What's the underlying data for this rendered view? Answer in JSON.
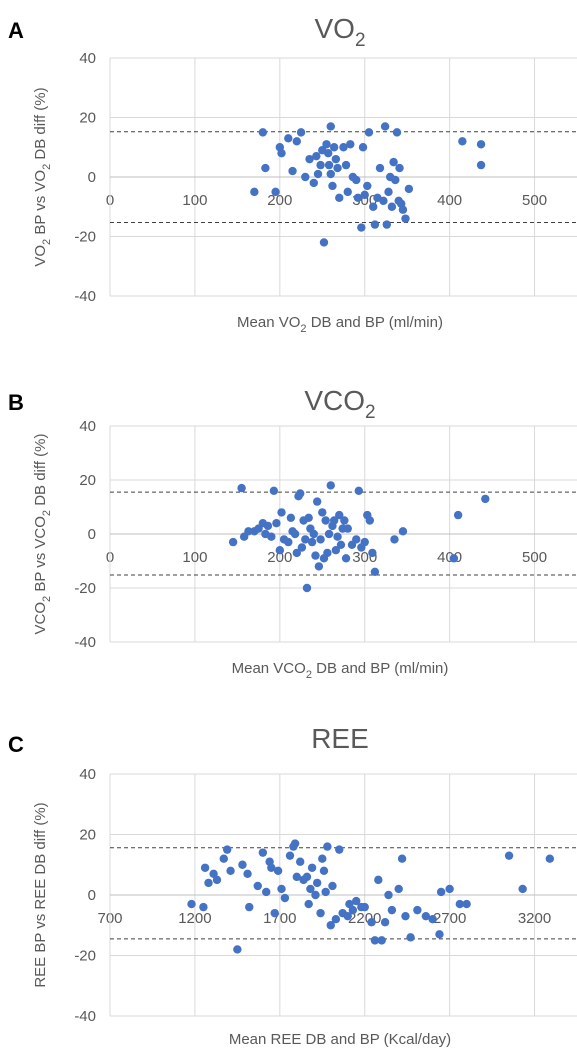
{
  "chart_data": [
    {
      "panel": "A",
      "type": "scatter",
      "title": "VO",
      "title_sub": "2",
      "xlabel_parts": [
        "Mean VO",
        "2",
        " DB and BP (ml/min)"
      ],
      "ylabel_parts": [
        "VO",
        "2",
        " BP vs VO",
        "2",
        " DB diff (%)"
      ],
      "xlim": [
        0,
        550
      ],
      "ylim": [
        -40,
        40
      ],
      "xticks": [
        0,
        100,
        200,
        300,
        400,
        500
      ],
      "yticks": [
        -40,
        -20,
        0,
        20,
        40
      ],
      "limits_of_agreement": [
        15.2,
        -15.3
      ],
      "series": [
        {
          "color": "#4472C4",
          "points": [
            [
              170,
              -5
            ],
            [
              180,
              15
            ],
            [
              183,
              3
            ],
            [
              195,
              -5
            ],
            [
              200,
              10
            ],
            [
              202,
              8
            ],
            [
              210,
              13
            ],
            [
              215,
              2
            ],
            [
              220,
              12
            ],
            [
              225,
              15
            ],
            [
              230,
              0
            ],
            [
              235,
              6
            ],
            [
              240,
              -2
            ],
            [
              243,
              7
            ],
            [
              245,
              1
            ],
            [
              248,
              4
            ],
            [
              250,
              9
            ],
            [
              252,
              -22
            ],
            [
              255,
              11
            ],
            [
              257,
              8
            ],
            [
              258,
              4
            ],
            [
              260,
              17
            ],
            [
              260,
              1
            ],
            [
              262,
              -3
            ],
            [
              264,
              10
            ],
            [
              266,
              6
            ],
            [
              268,
              3
            ],
            [
              270,
              -7
            ],
            [
              275,
              10
            ],
            [
              278,
              4
            ],
            [
              280,
              -5
            ],
            [
              283,
              11
            ],
            [
              286,
              0
            ],
            [
              290,
              -1
            ],
            [
              292,
              -7
            ],
            [
              296,
              -17
            ],
            [
              298,
              10
            ],
            [
              300,
              -6
            ],
            [
              303,
              -3
            ],
            [
              305,
              15
            ],
            [
              310,
              -10
            ],
            [
              312,
              -16
            ],
            [
              315,
              -7
            ],
            [
              318,
              3
            ],
            [
              322,
              -8
            ],
            [
              324,
              17
            ],
            [
              326,
              -16
            ],
            [
              328,
              -5
            ],
            [
              330,
              0
            ],
            [
              332,
              -10
            ],
            [
              334,
              5
            ],
            [
              336,
              -1
            ],
            [
              338,
              15
            ],
            [
              340,
              -8
            ],
            [
              341,
              3
            ],
            [
              343,
              -9
            ],
            [
              345,
              -11
            ],
            [
              348,
              -14
            ],
            [
              352,
              -4
            ],
            [
              415,
              12
            ],
            [
              437,
              11
            ],
            [
              437,
              4
            ]
          ]
        }
      ]
    },
    {
      "panel": "B",
      "type": "scatter",
      "title": "VCO",
      "title_sub": "2",
      "xlabel_parts": [
        "Mean VCO",
        "2",
        " DB and BP  (ml/min)"
      ],
      "ylabel_parts": [
        "VCO",
        "2",
        " BP vs VCO",
        "2",
        " DB diff (%)"
      ],
      "xlim": [
        0,
        550
      ],
      "ylim": [
        -40,
        40
      ],
      "xticks": [
        0,
        100,
        200,
        300,
        400,
        500
      ],
      "yticks": [
        -40,
        -20,
        0,
        20,
        40
      ],
      "limits_of_agreement": [
        15.5,
        -15.2
      ],
      "series": [
        {
          "color": "#4472C4",
          "points": [
            [
              145,
              -3
            ],
            [
              155,
              17
            ],
            [
              158,
              -1
            ],
            [
              163,
              1
            ],
            [
              170,
              1
            ],
            [
              175,
              2
            ],
            [
              180,
              4
            ],
            [
              183,
              0
            ],
            [
              186,
              3
            ],
            [
              190,
              -1
            ],
            [
              193,
              16
            ],
            [
              196,
              4
            ],
            [
              200,
              -6
            ],
            [
              202,
              8
            ],
            [
              205,
              -2
            ],
            [
              210,
              -3
            ],
            [
              213,
              6
            ],
            [
              215,
              1
            ],
            [
              218,
              0
            ],
            [
              220,
              -7
            ],
            [
              222,
              14
            ],
            [
              224,
              15
            ],
            [
              226,
              -5
            ],
            [
              228,
              5
            ],
            [
              230,
              -2
            ],
            [
              232,
              -20
            ],
            [
              234,
              6
            ],
            [
              236,
              2
            ],
            [
              238,
              -3
            ],
            [
              240,
              0
            ],
            [
              242,
              -8
            ],
            [
              244,
              12
            ],
            [
              246,
              -12
            ],
            [
              248,
              -2
            ],
            [
              250,
              8
            ],
            [
              252,
              -9
            ],
            [
              254,
              5
            ],
            [
              256,
              -7
            ],
            [
              258,
              0
            ],
            [
              260,
              18
            ],
            [
              262,
              3
            ],
            [
              264,
              5
            ],
            [
              266,
              -6
            ],
            [
              268,
              -1
            ],
            [
              270,
              7
            ],
            [
              272,
              -4
            ],
            [
              274,
              2
            ],
            [
              276,
              5
            ],
            [
              278,
              -9
            ],
            [
              280,
              2
            ],
            [
              285,
              -4
            ],
            [
              290,
              -2
            ],
            [
              293,
              16
            ],
            [
              296,
              -5
            ],
            [
              300,
              -3
            ],
            [
              303,
              7
            ],
            [
              306,
              5
            ],
            [
              309,
              -7
            ],
            [
              312,
              -14
            ],
            [
              335,
              -2
            ],
            [
              345,
              1
            ],
            [
              405,
              -9
            ],
            [
              410,
              7
            ],
            [
              442,
              13
            ]
          ]
        }
      ]
    },
    {
      "panel": "C",
      "type": "scatter",
      "title": "REE",
      "xlabel_parts": [
        "Mean REE DB and BP (Kcal/day)"
      ],
      "ylabel_parts": [
        "REE BP vs REE DB diff (%)"
      ],
      "xlim": [
        700,
        3450
      ],
      "ylim": [
        -40,
        40
      ],
      "xticks": [
        700,
        1200,
        1700,
        2200,
        2700,
        3200
      ],
      "yticks": [
        -40,
        -20,
        0,
        20,
        40
      ],
      "limits_of_agreement": [
        15.6,
        -14.5
      ],
      "series": [
        {
          "color": "#4472C4",
          "points": [
            [
              1180,
              -3
            ],
            [
              1250,
              -4
            ],
            [
              1260,
              9
            ],
            [
              1280,
              4
            ],
            [
              1310,
              7
            ],
            [
              1330,
              5
            ],
            [
              1370,
              12
            ],
            [
              1390,
              15
            ],
            [
              1410,
              8
            ],
            [
              1450,
              -18
            ],
            [
              1480,
              10
            ],
            [
              1510,
              7
            ],
            [
              1520,
              -4
            ],
            [
              1570,
              3
            ],
            [
              1600,
              14
            ],
            [
              1620,
              1
            ],
            [
              1640,
              11
            ],
            [
              1650,
              9
            ],
            [
              1670,
              -6
            ],
            [
              1690,
              8
            ],
            [
              1710,
              2
            ],
            [
              1730,
              -1
            ],
            [
              1760,
              13
            ],
            [
              1780,
              16
            ],
            [
              1790,
              17
            ],
            [
              1800,
              6
            ],
            [
              1820,
              11
            ],
            [
              1840,
              5
            ],
            [
              1860,
              6
            ],
            [
              1870,
              -3
            ],
            [
              1880,
              2
            ],
            [
              1890,
              9
            ],
            [
              1910,
              0
            ],
            [
              1920,
              4
            ],
            [
              1940,
              -6
            ],
            [
              1950,
              12
            ],
            [
              1960,
              8
            ],
            [
              1970,
              1
            ],
            [
              1980,
              16
            ],
            [
              2000,
              -10
            ],
            [
              2010,
              3
            ],
            [
              2030,
              -8
            ],
            [
              2050,
              15
            ],
            [
              2070,
              -6
            ],
            [
              2100,
              -7
            ],
            [
              2110,
              -3
            ],
            [
              2130,
              -5
            ],
            [
              2150,
              -2
            ],
            [
              2180,
              -4
            ],
            [
              2200,
              -4
            ],
            [
              2240,
              -9
            ],
            [
              2260,
              -15
            ],
            [
              2280,
              5
            ],
            [
              2300,
              -15
            ],
            [
              2320,
              -9
            ],
            [
              2340,
              0
            ],
            [
              2360,
              -5
            ],
            [
              2400,
              2
            ],
            [
              2420,
              12
            ],
            [
              2440,
              -7
            ],
            [
              2470,
              -14
            ],
            [
              2510,
              -5
            ],
            [
              2560,
              -7
            ],
            [
              2600,
              -8
            ],
            [
              2640,
              -13
            ],
            [
              2650,
              1
            ],
            [
              2700,
              2
            ],
            [
              2760,
              -3
            ],
            [
              2800,
              -3
            ],
            [
              3050,
              13
            ],
            [
              3130,
              2
            ],
            [
              3290,
              12
            ]
          ]
        }
      ]
    }
  ]
}
